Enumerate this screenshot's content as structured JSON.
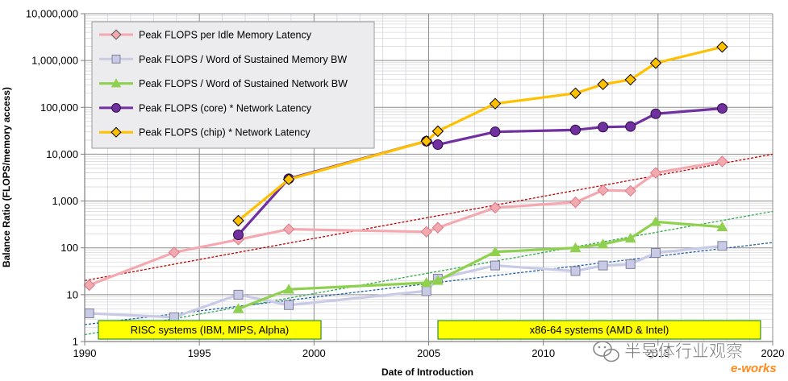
{
  "chart_data": {
    "type": "line",
    "title": "",
    "xlabel": "Date of Introduction",
    "ylabel": "Balance Ratio (FLOPS/memory access)",
    "xlim": [
      1990,
      2020
    ],
    "ylim": [
      1,
      10000000
    ],
    "y_scale": "log",
    "grid": true,
    "legend_position": "top-left",
    "x_ticks": [
      "1990",
      "1995",
      "2000",
      "2005",
      "2010",
      "2015",
      "2020"
    ],
    "y_ticks": [
      {
        "value": 1,
        "label": "1"
      },
      {
        "value": 10,
        "label": "10"
      },
      {
        "value": 100,
        "label": "100"
      },
      {
        "value": 1000,
        "label": "1,000"
      },
      {
        "value": 10000,
        "label": "10,000"
      },
      {
        "value": 100000,
        "label": "100,000"
      },
      {
        "value": 1000000,
        "label": "1,000,000"
      },
      {
        "value": 10000000,
        "label": "10,000,000"
      }
    ],
    "series": [
      {
        "name": "Peak FLOPS per Idle Memory Latency",
        "color": "#f4a9b0",
        "marker": "diamond",
        "x": [
          1990.2,
          1993.9,
          1996.7,
          1998.9,
          2004.9,
          2005.4,
          2007.9,
          2011.4,
          2012.6,
          2013.8,
          2014.9,
          2017.8
        ],
        "y": [
          16,
          80,
          150,
          250,
          220,
          270,
          720,
          940,
          1700,
          1650,
          4000,
          7000
        ]
      },
      {
        "name": "Peak FLOPS / Word of Sustained Memory BW",
        "color": "#c9cbe6",
        "marker": "square",
        "x": [
          1990.2,
          1993.9,
          1996.7,
          1998.9,
          2004.9,
          2005.4,
          2007.9,
          2011.4,
          2012.6,
          2013.8,
          2014.9,
          2017.8
        ],
        "y": [
          4,
          3.3,
          10,
          6,
          12,
          22,
          42,
          32,
          42,
          45,
          78,
          110
        ]
      },
      {
        "name": "Peak FLOPS / Word of Sustained Network BW",
        "color": "#8fd14f",
        "marker": "triangle",
        "x": [
          1996.7,
          1998.9,
          2004.9,
          2005.4,
          2007.9,
          2011.4,
          2012.6,
          2013.8,
          2014.9,
          2017.8
        ],
        "y": [
          5,
          13,
          18,
          20,
          82,
          100,
          120,
          160,
          360,
          280
        ]
      },
      {
        "name": "Peak FLOPS (core) * Network Latency",
        "color": "#7030a0",
        "marker": "circle",
        "x": [
          1996.7,
          1998.9,
          2004.9,
          2005.4,
          2007.9,
          2011.4,
          2012.6,
          2013.8,
          2014.9,
          2017.8
        ],
        "y": [
          190,
          3000,
          19000,
          16000,
          30000,
          33000,
          38000,
          39000,
          73000,
          95000
        ]
      },
      {
        "name": "Peak FLOPS (chip) * Network Latency",
        "color": "#ffc000",
        "marker": "diamond",
        "x": [
          1996.7,
          1998.9,
          2004.9,
          2005.4,
          2007.9,
          2011.4,
          2012.6,
          2013.8,
          2014.9,
          2017.8
        ],
        "y": [
          380,
          2900,
          19000,
          31000,
          120000,
          200000,
          310000,
          390000,
          880000,
          1950000
        ]
      }
    ],
    "trendlines": [
      {
        "color": "#c00000",
        "x": [
          1990,
          2020
        ],
        "y": [
          20,
          10000
        ]
      },
      {
        "color": "#2eaa4a",
        "x": [
          1990,
          2020
        ],
        "y": [
          1.4,
          600
        ]
      },
      {
        "color": "#1f5fa8",
        "x": [
          1990,
          2020
        ],
        "y": [
          2.3,
          130
        ]
      }
    ],
    "annotations": [
      {
        "text": "RISC systems (IBM, MIPS, Alpha)",
        "bg": "#ffff00"
      },
      {
        "text": "x86-64 systems (AMD & Intel)",
        "bg": "#ffff00"
      }
    ]
  },
  "watermark": {
    "text": "半导体行业观察",
    "logo_text": "e-works"
  }
}
